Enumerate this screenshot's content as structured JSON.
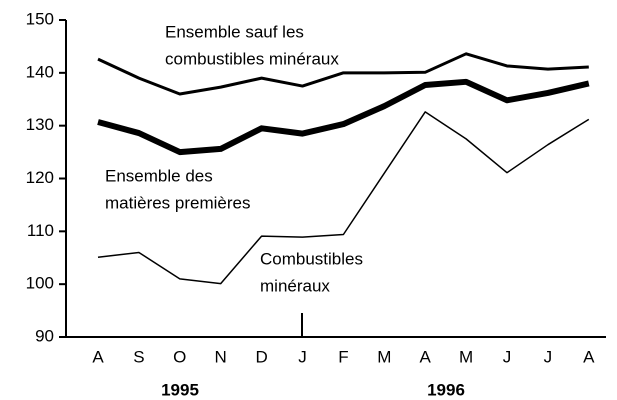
{
  "chart_data": {
    "type": "line",
    "categories": [
      "A",
      "S",
      "O",
      "N",
      "D",
      "J",
      "F",
      "M",
      "A",
      "M",
      "J",
      "J",
      "A"
    ],
    "years": [
      "1995",
      "1996"
    ],
    "ylim": [
      90,
      150
    ],
    "yticks": [
      90,
      100,
      110,
      120,
      130,
      140,
      150
    ],
    "series": [
      {
        "name_lines": [
          "Ensemble sauf les",
          "combustibles minéraux"
        ],
        "color": "#000000",
        "width": 3,
        "values": [
          142.6,
          139,
          136,
          137.3,
          139,
          137.5,
          140,
          140,
          140.1,
          143.6,
          141.3,
          140.7,
          141.1
        ]
      },
      {
        "name_lines": [
          "Ensemble des",
          "matières premières"
        ],
        "color": "#000000",
        "width": 6,
        "values": [
          130.7,
          128.6,
          125,
          125.6,
          129.5,
          128.5,
          130.3,
          133.7,
          137.7,
          138.3,
          134.8,
          136.2,
          138
        ]
      },
      {
        "name_lines": [
          "Combustibles",
          "minéraux"
        ],
        "color": "#000000",
        "width": 1.5,
        "values": [
          105.1,
          106,
          101,
          100.1,
          109.1,
          108.9,
          109.4,
          121,
          132.6,
          127.5,
          121.1,
          126.4,
          131.2
        ]
      }
    ]
  }
}
